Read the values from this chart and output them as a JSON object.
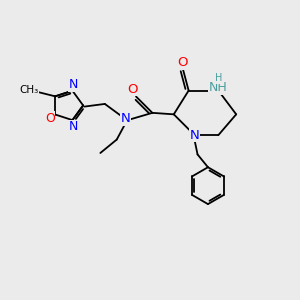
{
  "bg_color": "#ebebeb",
  "atom_colors": {
    "N": "#0000ff",
    "O": "#ff0000",
    "NH": "#4a9e9e",
    "C": "#000000"
  },
  "bond_color": "#000000",
  "font_size": 9
}
